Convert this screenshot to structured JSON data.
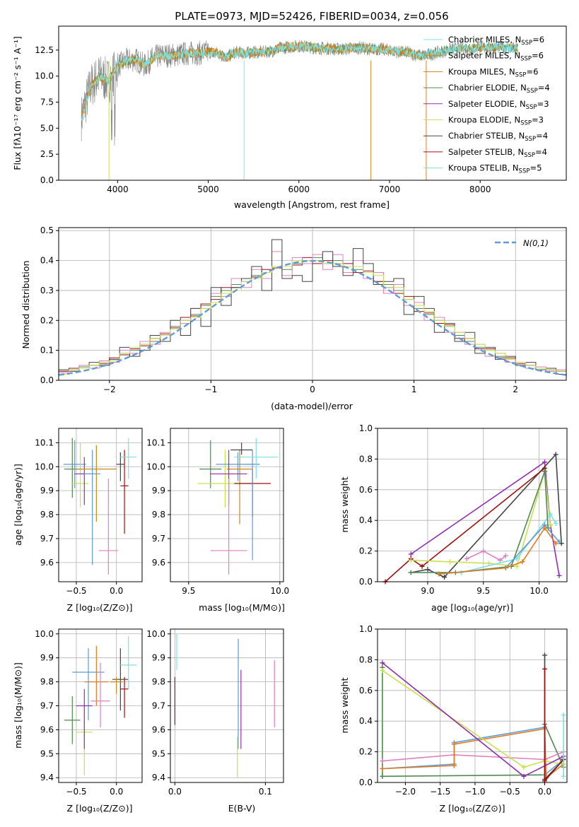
{
  "colors": [
    "#5e9bd8",
    "#e07b20",
    "#c68a16",
    "#508a50",
    "#9030b0",
    "#c8e050",
    "#444444",
    "#a01010",
    "#80e0e0",
    "#e080c0"
  ],
  "spectrum": {
    "title": "PLATE=0973, MJD=52426, FIBERID=0034, z=0.056",
    "xlabel": "wavelength [Angstrom, rest frame]",
    "ylabel": "Flux [fλ10⁻¹⁷ erg cm⁻² s⁻¹ A⁻¹]",
    "xticks": [
      "4000",
      "5000",
      "6000",
      "7000",
      "8000"
    ],
    "yticks": [
      "0.0",
      "2.5",
      "5.0",
      "7.5",
      "10.0",
      "12.5"
    ],
    "legend": [
      {
        "label": "Chabrier MILES, N",
        "sub": "SSP",
        "tail": "=6"
      },
      {
        "label": "Salpeter MILES, N",
        "sub": "SSP",
        "tail": "=6"
      },
      {
        "label": "Kroupa MILES, N",
        "sub": "SSP",
        "tail": "=6"
      },
      {
        "label": "Chabrier ELODIE, N",
        "sub": "SSP",
        "tail": "=4"
      },
      {
        "label": "Salpeter ELODIE, N",
        "sub": "SSP",
        "tail": "=3"
      },
      {
        "label": "Kroupa ELODIE, N",
        "sub": "SSP",
        "tail": "=3"
      },
      {
        "label": "Chabrier STELIB, N",
        "sub": "SSP",
        "tail": "=4"
      },
      {
        "label": "Salpeter STELIB, N",
        "sub": "SSP",
        "tail": "=4"
      },
      {
        "label": "Kroupa STELIB, N",
        "sub": "SSP",
        "tail": "=5"
      }
    ]
  },
  "chart_data": [
    {
      "type": "line",
      "title": "PLATE=0973, MJD=52426, FIBERID=0034, z=0.056",
      "xlim": [
        3350,
        8950
      ],
      "ylim": [
        0,
        14.8
      ],
      "x": [
        3600,
        3700,
        3800,
        3900,
        4000,
        4100,
        4200,
        4300,
        4400,
        4500,
        4600,
        4700,
        4800,
        4900,
        5000,
        5100,
        5200,
        5300,
        5400,
        5500,
        5600,
        5700,
        5800,
        5900,
        6000,
        6100,
        6200,
        6300,
        6400,
        6500,
        6600,
        6700,
        6800,
        6900,
        7000,
        7100,
        7200,
        7300,
        7400,
        7500,
        7600,
        7700,
        7800,
        7900,
        8000,
        8100,
        8200,
        8300,
        8400
      ],
      "y": [
        6.0,
        9.0,
        10.0,
        9.5,
        11.0,
        11.5,
        11.6,
        11.0,
        11.8,
        12.0,
        12.0,
        12.1,
        12.2,
        12.2,
        12.3,
        12.2,
        11.8,
        12.3,
        12.2,
        12.3,
        12.3,
        12.4,
        12.7,
        12.8,
        12.9,
        12.8,
        12.7,
        12.7,
        12.6,
        12.6,
        12.7,
        12.7,
        12.6,
        12.6,
        12.5,
        12.3,
        12.3,
        12.0,
        12.0,
        12.2,
        12.4,
        12.6,
        12.7,
        12.6,
        12.8,
        12.7,
        12.8,
        12.7,
        12.6
      ]
    },
    {
      "type": "bar",
      "xlabel": "(data-model)/error",
      "ylabel": "Normed distribution",
      "xlim": [
        -2.5,
        2.5
      ],
      "ylim": [
        0,
        0.51
      ],
      "xticks": [
        "−2",
        "−1",
        "0",
        "1",
        "2"
      ],
      "yticks": [
        "0.0",
        "0.1",
        "0.2",
        "0.3",
        "0.4",
        "0.5"
      ],
      "legend": "N(0,1)",
      "bin_width": 0.1,
      "series": [
        {
          "values": [
            0.03,
            0.035,
            0.045,
            0.05,
            0.06,
            0.07,
            0.09,
            0.1,
            0.12,
            0.13,
            0.15,
            0.18,
            0.2,
            0.22,
            0.25,
            0.28,
            0.3,
            0.32,
            0.33,
            0.35,
            0.36,
            0.38,
            0.37,
            0.39,
            0.4,
            0.41,
            0.39,
            0.4,
            0.38,
            0.37,
            0.36,
            0.33,
            0.32,
            0.3,
            0.27,
            0.24,
            0.22,
            0.2,
            0.18,
            0.15,
            0.13,
            0.11,
            0.1,
            0.08,
            0.07,
            0.06,
            0.05,
            0.04,
            0.03,
            0.03
          ]
        },
        {
          "values": [
            0.03,
            0.04,
            0.04,
            0.05,
            0.055,
            0.075,
            0.085,
            0.105,
            0.115,
            0.14,
            0.155,
            0.175,
            0.21,
            0.215,
            0.255,
            0.27,
            0.31,
            0.31,
            0.34,
            0.345,
            0.37,
            0.375,
            0.38,
            0.385,
            0.41,
            0.39,
            0.4,
            0.39,
            0.39,
            0.36,
            0.365,
            0.33,
            0.31,
            0.29,
            0.28,
            0.23,
            0.225,
            0.19,
            0.185,
            0.14,
            0.14,
            0.105,
            0.105,
            0.075,
            0.075,
            0.055,
            0.05,
            0.04,
            0.035,
            0.03
          ]
        },
        {
          "values": [
            0.025,
            0.03,
            0.05,
            0.04,
            0.065,
            0.06,
            0.1,
            0.09,
            0.13,
            0.12,
            0.16,
            0.17,
            0.19,
            0.24,
            0.24,
            0.29,
            0.28,
            0.34,
            0.31,
            0.37,
            0.34,
            0.43,
            0.35,
            0.41,
            0.39,
            0.42,
            0.37,
            0.42,
            0.36,
            0.4,
            0.34,
            0.36,
            0.29,
            0.32,
            0.25,
            0.26,
            0.2,
            0.21,
            0.16,
            0.16,
            0.12,
            0.12,
            0.08,
            0.09,
            0.06,
            0.06,
            0.04,
            0.045,
            0.03,
            0.035
          ]
        },
        {
          "values": [
            0.035,
            0.03,
            0.04,
            0.06,
            0.05,
            0.07,
            0.11,
            0.08,
            0.1,
            0.15,
            0.13,
            0.2,
            0.15,
            0.24,
            0.18,
            0.31,
            0.25,
            0.31,
            0.34,
            0.38,
            0.3,
            0.47,
            0.34,
            0.35,
            0.33,
            0.4,
            0.43,
            0.38,
            0.35,
            0.44,
            0.39,
            0.32,
            0.33,
            0.34,
            0.22,
            0.28,
            0.24,
            0.16,
            0.19,
            0.13,
            0.16,
            0.09,
            0.11,
            0.07,
            0.08,
            0.05,
            0.06,
            0.035,
            0.04,
            0.02
          ]
        },
        {
          "values": [
            0.02,
            0.035,
            0.04,
            0.05,
            0.06,
            0.065,
            0.09,
            0.11,
            0.12,
            0.14,
            0.15,
            0.17,
            0.2,
            0.21,
            0.24,
            0.26,
            0.29,
            0.3,
            0.33,
            0.34,
            0.36,
            0.38,
            0.38,
            0.4,
            0.4,
            0.4,
            0.39,
            0.39,
            0.38,
            0.38,
            0.36,
            0.35,
            0.31,
            0.31,
            0.27,
            0.25,
            0.23,
            0.2,
            0.18,
            0.16,
            0.14,
            0.12,
            0.1,
            0.09,
            0.07,
            0.06,
            0.05,
            0.04,
            0.035,
            0.03
          ]
        }
      ]
    }
  ],
  "panels": {
    "age_vs_z": {
      "xlabel": "Z [log₁₀(Z/Z⊙)]",
      "ylabel": "age  [log₁₀(age/yr)]",
      "xticks": [
        "−0.5",
        "0.0"
      ],
      "yticks": [
        "9.6",
        "9.7",
        "9.8",
        "9.9",
        "10.0",
        "10.1"
      ]
    },
    "age_vs_mass": {
      "xlabel": "mass [log₁₀(M/M⊙)]",
      "xticks": [
        "9.5",
        "10.0"
      ],
      "yticks": [
        "9.6",
        "9.7",
        "9.8",
        "9.9",
        "10.0",
        "10.1"
      ]
    },
    "mw_vs_age": {
      "xlabel": "age  [log₁₀(age/yr)]",
      "ylabel": "mass weight",
      "xticks": [
        "9.0",
        "9.5",
        "10.0"
      ],
      "yticks": [
        "0.0",
        "0.2",
        "0.4",
        "0.6",
        "0.8",
        "1.0"
      ]
    },
    "mass_vs_z": {
      "xlabel": "Z [log₁₀(Z/Z⊙)]",
      "ylabel": "mass [log₁₀(M/M⊙)]",
      "xticks": [
        "−0.5",
        "0.0"
      ],
      "yticks": [
        "9.4",
        "9.5",
        "9.6",
        "9.7",
        "9.8",
        "9.9",
        "10.0"
      ]
    },
    "mass_vs_ebv": {
      "xlabel": "E(B-V)",
      "xticks": [
        "0.0",
        "0.1"
      ],
      "yticks": [
        "9.4",
        "9.5",
        "9.6",
        "9.7",
        "9.8",
        "9.9",
        "10.0"
      ]
    },
    "mw_vs_z": {
      "xlabel": "Z [log₁₀(Z/Z⊙)]",
      "ylabel": "mass weight",
      "xticks": [
        "−2.0",
        "−1.5",
        "−1.0",
        "−0.5",
        "0.0"
      ],
      "yticks": [
        "0.0",
        "0.2",
        "0.4",
        "0.6",
        "0.8",
        "1.0"
      ]
    }
  }
}
